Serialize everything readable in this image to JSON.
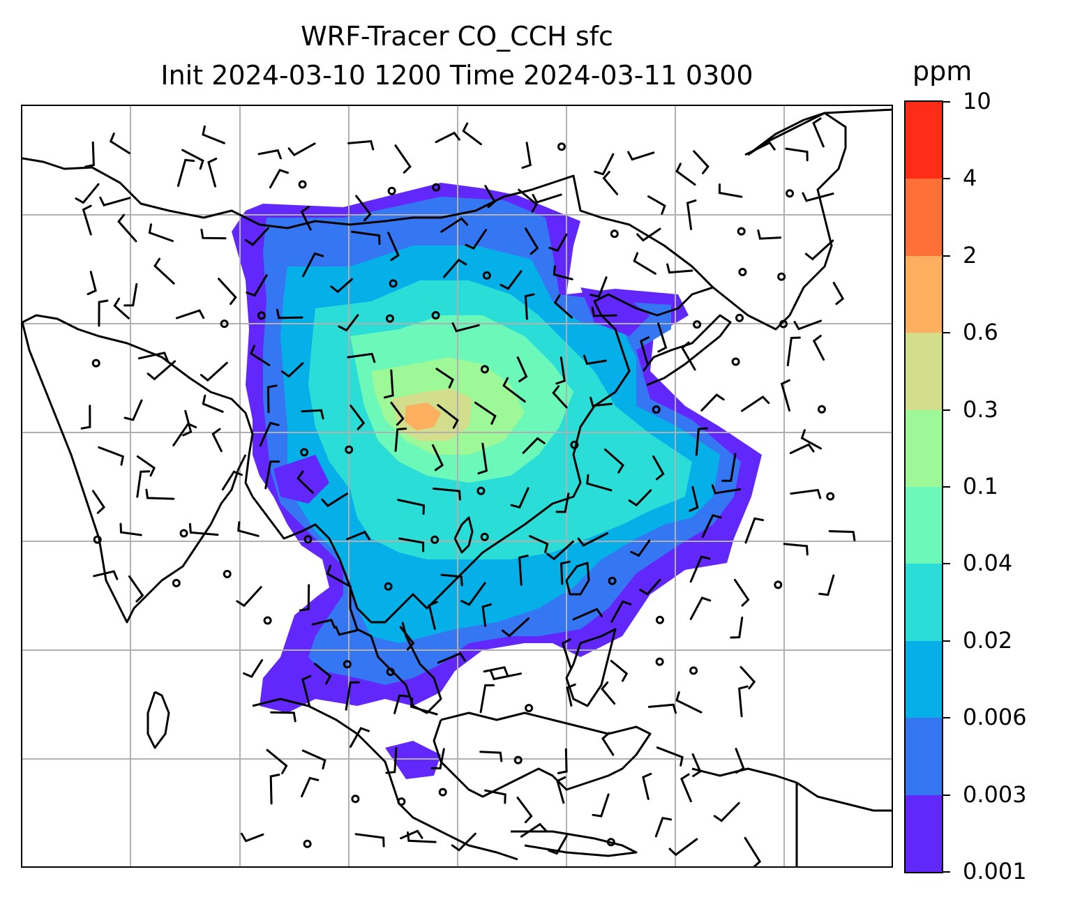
{
  "title": {
    "line1": "WRF-Tracer CO_CCH sfc",
    "line2": "Init 2024-03-10 1200 Time 2024-03-11 0300"
  },
  "colorbar": {
    "unit": "ppm",
    "levels": [
      "0.001",
      "0.003",
      "0.006",
      "0.02",
      "0.04",
      "0.1",
      "0.3",
      "0.6",
      "2",
      "4",
      "10"
    ],
    "colors": [
      "#6228FB",
      "#3577F3",
      "#05B0E8",
      "#2ADDD7",
      "#6CF8B8",
      "#9DF897",
      "#D2DE8B",
      "#FCAF5E",
      "#FE7038",
      "#FF2D17"
    ]
  },
  "map": {
    "gridlines": true,
    "grid_color": "#b0b0b0",
    "coastline_color": "#000000",
    "wind_barb_color": "#000000"
  }
}
